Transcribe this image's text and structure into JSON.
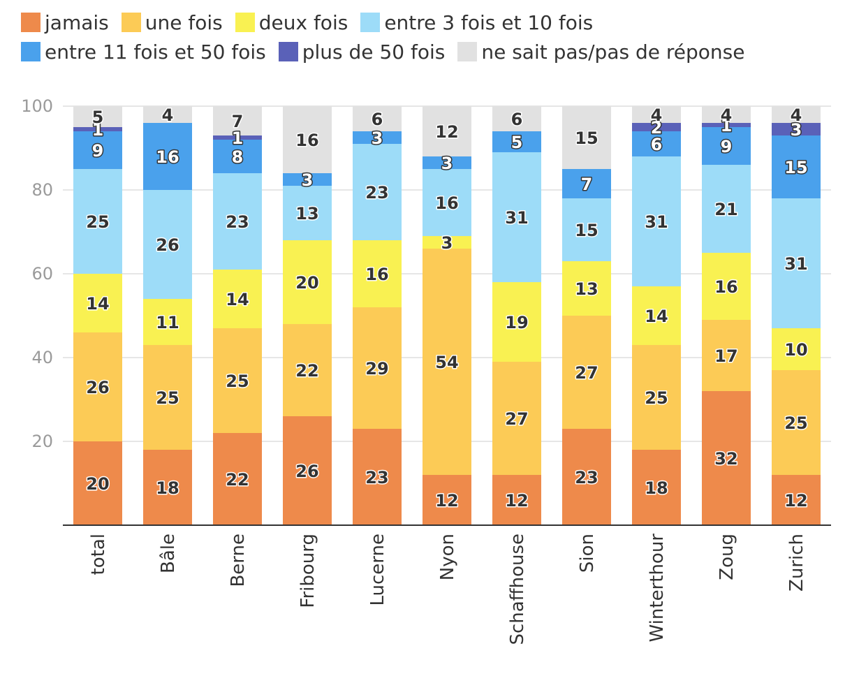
{
  "chart_data": {
    "type": "bar",
    "stacked": true,
    "categories": [
      "total",
      "Bâle",
      "Berne",
      "Fribourg",
      "Lucerne",
      "Nyon",
      "Schaffhouse",
      "Sion",
      "Winterthour",
      "Zoug",
      "Zurich"
    ],
    "series": [
      {
        "name": "jamais",
        "color": "#ee8a4b",
        "values": [
          20,
          18,
          22,
          26,
          23,
          12,
          12,
          23,
          18,
          32,
          12
        ]
      },
      {
        "name": "une fois",
        "color": "#fccb56",
        "values": [
          26,
          25,
          25,
          22,
          29,
          54,
          27,
          27,
          25,
          17,
          25
        ]
      },
      {
        "name": "deux fois",
        "color": "#f9f152",
        "values": [
          14,
          11,
          14,
          20,
          16,
          3,
          19,
          13,
          14,
          16,
          10
        ]
      },
      {
        "name": "entre 3 fois et 10 fois",
        "color": "#9ddcf8",
        "values": [
          25,
          26,
          23,
          13,
          23,
          16,
          31,
          15,
          31,
          21,
          31
        ]
      },
      {
        "name": "entre 11 fois et 50 fois",
        "color": "#4aa1ec",
        "values": [
          9,
          16,
          8,
          3,
          3,
          3,
          5,
          7,
          6,
          9,
          15
        ]
      },
      {
        "name": "plus de 50 fois",
        "color": "#5a61b8",
        "values": [
          1,
          0,
          1,
          0,
          0,
          0,
          0,
          0,
          2,
          1,
          3
        ]
      },
      {
        "name": "ne sait pas/pas de réponse",
        "color": "#e1e1e1",
        "values": [
          5,
          4,
          7,
          16,
          6,
          12,
          6,
          15,
          4,
          4,
          4
        ]
      }
    ],
    "ylim": [
      0,
      100
    ],
    "yticks": [
      20,
      40,
      60,
      80,
      100
    ],
    "grid": true,
    "legend": "top",
    "title": "",
    "xlabel": "",
    "ylabel": ""
  }
}
